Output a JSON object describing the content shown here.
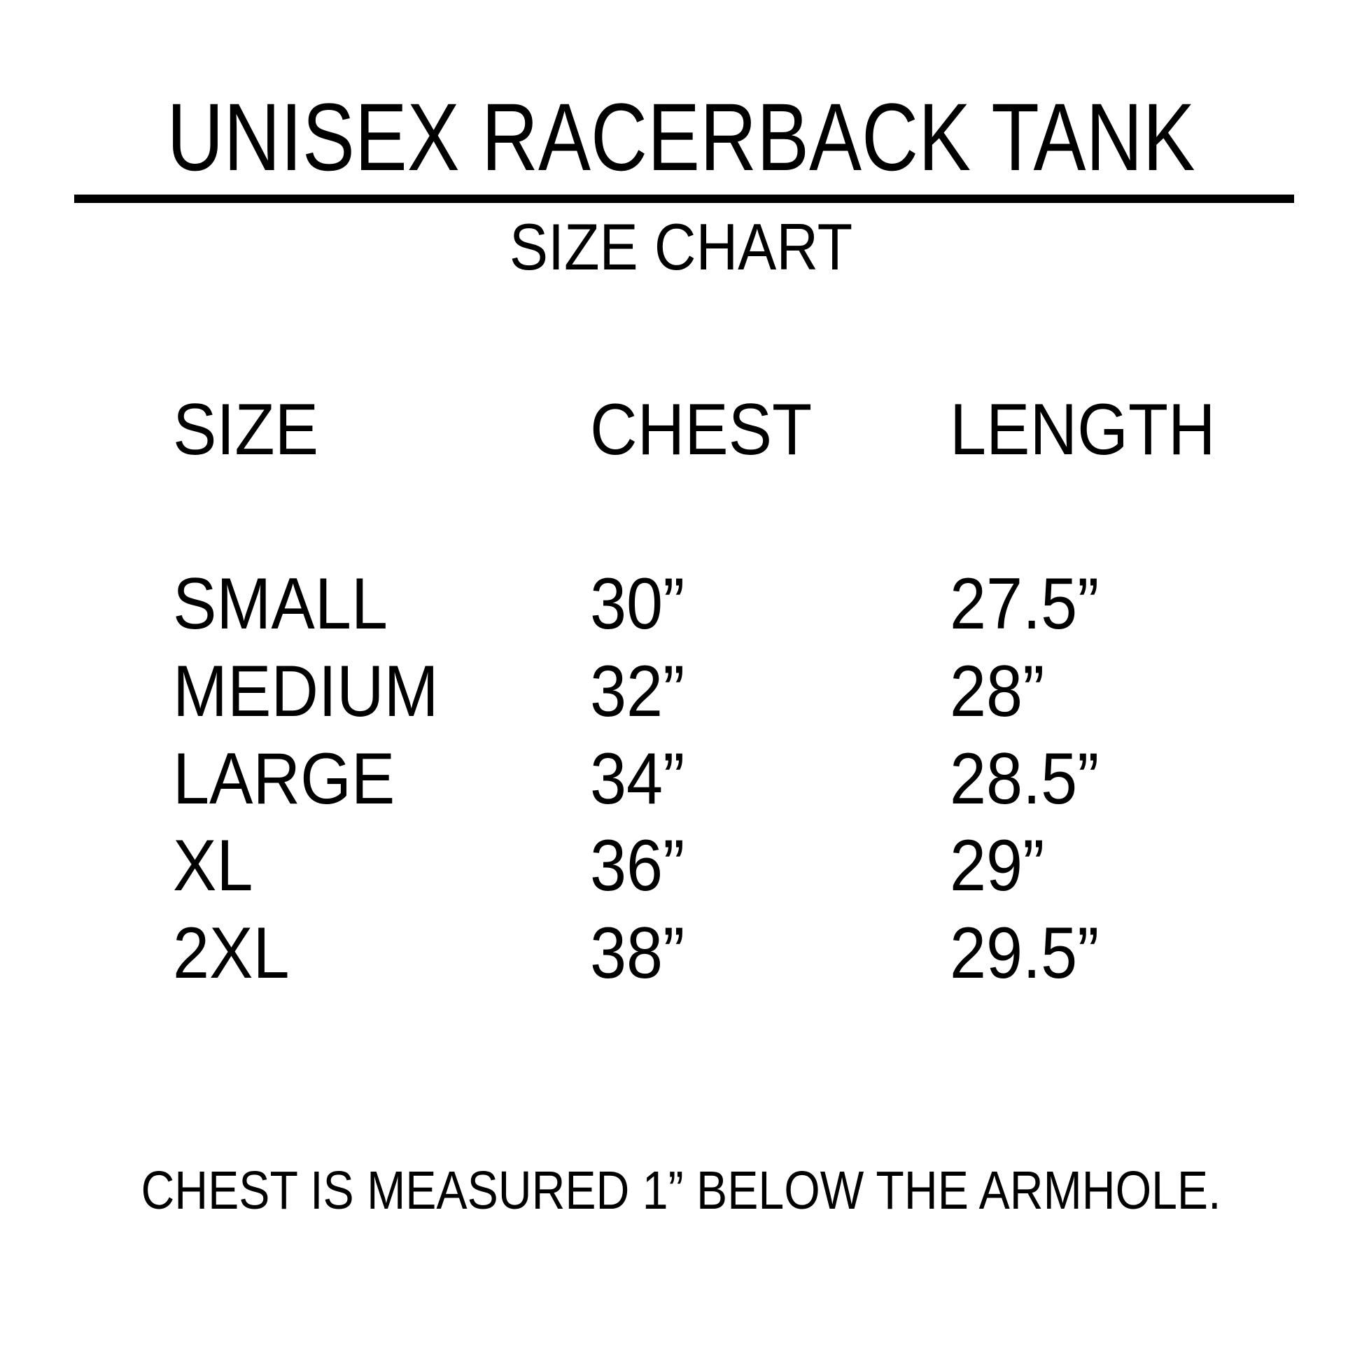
{
  "title": "UNISEX RACERBACK TANK",
  "subtitle": "SIZE CHART",
  "table": {
    "headers": [
      "SIZE",
      "CHEST",
      "LENGTH"
    ],
    "rows": [
      [
        "SMALL",
        "30”",
        "27.5”"
      ],
      [
        "MEDIUM",
        "32”",
        "28”"
      ],
      [
        "LARGE",
        "34”",
        "28.5”"
      ],
      [
        "XL",
        "36”",
        "29”"
      ],
      [
        "2XL",
        "38”",
        "29.5”"
      ]
    ]
  },
  "footer": "CHEST IS MEASURED 1” BELOW THE ARMHOLE."
}
